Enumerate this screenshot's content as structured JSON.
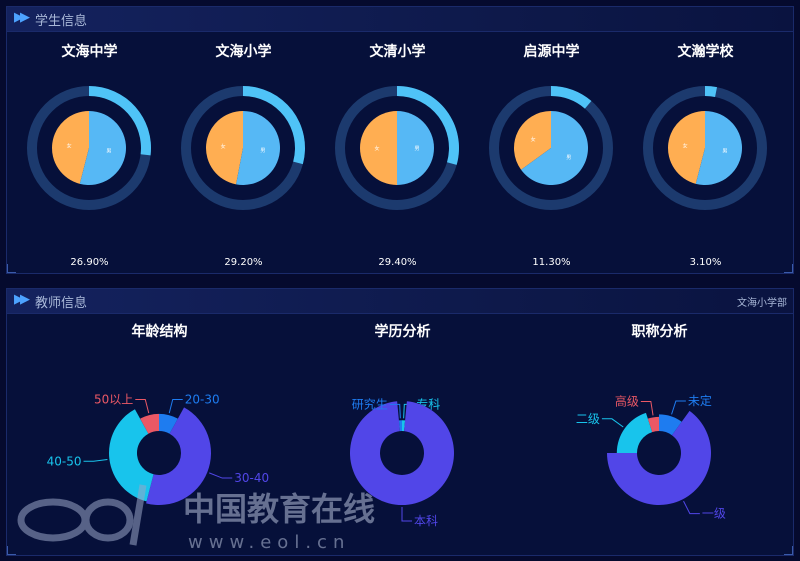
{
  "student_section": {
    "title": "学生信息",
    "schools": [
      {
        "name": "文海中学",
        "percent": "26.90%",
        "ring_fraction": 0.269,
        "pie_labels": [
          "女",
          "男"
        ],
        "pie_female_fraction": 0.46
      },
      {
        "name": "文海小学",
        "percent": "29.20%",
        "ring_fraction": 0.292,
        "pie_labels": [
          "女",
          "男"
        ],
        "pie_female_fraction": 0.47
      },
      {
        "name": "文清小学",
        "percent": "29.40%",
        "ring_fraction": 0.294,
        "pie_labels": [
          "女",
          "男"
        ],
        "pie_female_fraction": 0.5
      },
      {
        "name": "启源中学",
        "percent": "11.30%",
        "ring_fraction": 0.113,
        "pie_labels": [
          "女",
          "男"
        ],
        "pie_female_fraction": 0.35
      },
      {
        "name": "文瀚学校",
        "percent": "3.10%",
        "ring_fraction": 0.031,
        "pie_labels": [
          "女",
          "男"
        ],
        "pie_female_fraction": 0.46
      }
    ]
  },
  "teacher_section": {
    "title": "教师信息",
    "filter": "文海小学部",
    "charts": [
      {
        "title": "年龄结构",
        "slices": [
          {
            "label": "20-30",
            "value": 8,
            "color": "#1e7cf0"
          },
          {
            "label": "30-40",
            "value": 46,
            "color": "#5146e8"
          },
          {
            "label": "40-50",
            "value": 38,
            "color": "#18c4ec"
          },
          {
            "label": "50以上",
            "value": 8,
            "color": "#ea5865"
          }
        ]
      },
      {
        "title": "学历分析",
        "slices": [
          {
            "label": "专科",
            "value": 1.5,
            "color": "#18c4ec"
          },
          {
            "label": "本科",
            "value": 97,
            "color": "#5146e8"
          },
          {
            "label": "研究生",
            "value": 1.5,
            "color": "#1e7cf0"
          }
        ]
      },
      {
        "title": "职称分析",
        "slices": [
          {
            "label": "未定",
            "value": 10,
            "color": "#1e7cf0"
          },
          {
            "label": "一级",
            "value": 65,
            "color": "#5146e8"
          },
          {
            "label": "二级",
            "value": 20,
            "color": "#18c4ec"
          },
          {
            "label": "高级",
            "value": 5,
            "color": "#ea5865"
          }
        ]
      }
    ]
  },
  "watermark": {
    "brand": "eol",
    "text": "中国教育在线",
    "url": "www.eol.cn"
  },
  "colors": {
    "ring_fill": "#4fc3f7",
    "ring_track": "#1c3a6e",
    "pie_female": "#ffae52",
    "pie_male": "#56b8f5"
  }
}
